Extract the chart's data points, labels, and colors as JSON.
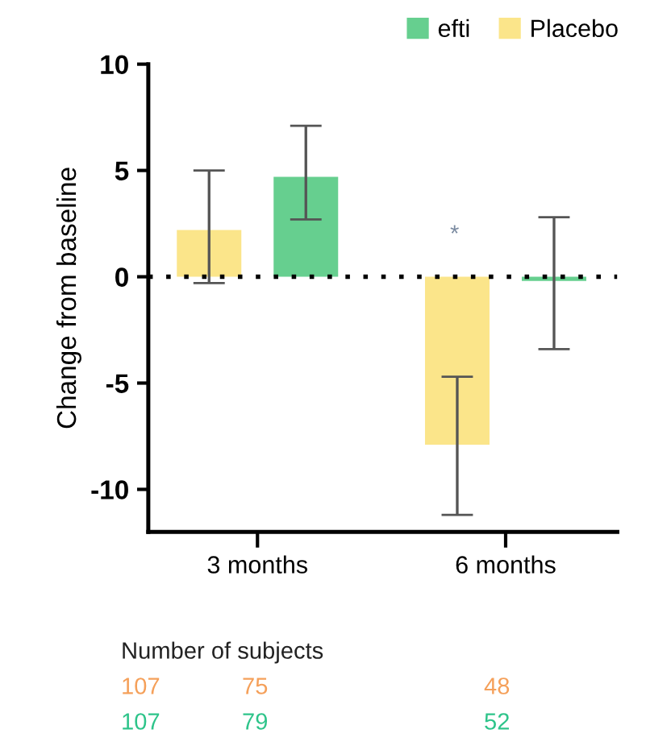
{
  "chart_data": {
    "type": "bar",
    "ylabel": "Change from baseline",
    "categories": [
      "3 months",
      "6 months"
    ],
    "series": [
      {
        "name": "Placebo",
        "color": "#fbe58a",
        "values": [
          2.2,
          -7.9
        ],
        "errors": [
          [
            -0.3,
            5.0
          ],
          [
            -11.2,
            -4.7
          ]
        ]
      },
      {
        "name": "efti",
        "color": "#66cf8f",
        "values": [
          4.7,
          -0.2
        ],
        "errors": [
          [
            2.7,
            7.1
          ],
          [
            -3.4,
            2.8
          ]
        ]
      }
    ],
    "ylim": [
      -12,
      10
    ],
    "yticks": [
      -10,
      -5,
      0,
      5,
      10
    ],
    "grid": false,
    "legend": "top right",
    "ref_lines": [
      {
        "axis": "y",
        "value": 0,
        "line_style": "dotted",
        "color": "#000000"
      }
    ],
    "annotations": [
      "*",
      "Number of subjects",
      "107",
      "75",
      "48",
      "107",
      "79",
      "52"
    ]
  }
}
